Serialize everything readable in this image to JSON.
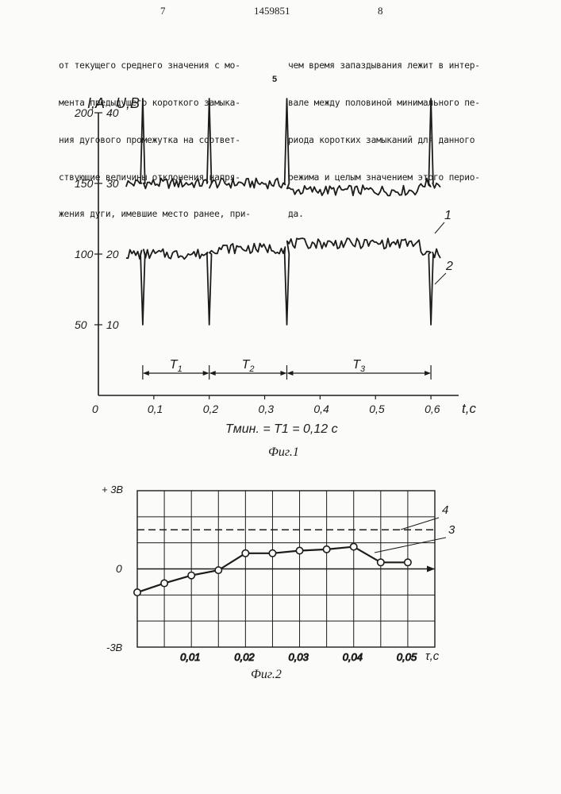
{
  "header": {
    "page_left": "7",
    "patent_number": "1459851",
    "page_right": "8",
    "line_marker": "5"
  },
  "text_left": [
    "от текущего среднего значения с мо-",
    "мента предыдущего короткого замыка-",
    "ния дугового промежутка на соответ-",
    "ствующие величины отклонения напря-",
    "жения дуги, имевшие место ранее, при-"
  ],
  "text_right": [
    "чем время запаздывания лежит в интер-",
    "вале между половиной минимального пе-",
    "риода коротких замыканий для данного",
    "режима и целым значением этого перио-",
    "да."
  ],
  "fig1": {
    "caption": "Фиг.1",
    "axis_label_left": "I,A",
    "axis_label_right": "U,B",
    "x_label": "t,c",
    "formula": "Tмин. = T1 = 0,12 c",
    "period_labels": [
      "T1",
      "T2",
      "T3"
    ],
    "curve_labels": [
      "1",
      "2"
    ]
  },
  "fig2": {
    "caption": "Фиг.2",
    "y_top_label": "+ 3В",
    "y_zero_label": "0",
    "y_bottom_label": "-3В",
    "x_label": "τ,c",
    "curve_labels": [
      "4",
      "3"
    ]
  },
  "chart_data": [
    {
      "type": "line",
      "x_ticks": [
        "0",
        "0,1",
        "0,2",
        "0,3",
        "0,4",
        "0,5",
        "0,6"
      ],
      "y_left_ticks": [
        "200",
        "150",
        "100",
        "50"
      ],
      "y_right_ticks": [
        "40",
        "30",
        "20",
        "10"
      ],
      "xlim": [
        0,
        0.65
      ],
      "ylim": [
        0,
        200
      ],
      "short_circuit_times": [
        0.08,
        0.2,
        0.34,
        0.6
      ],
      "periods": [
        {
          "name": "T1",
          "start": 0.08,
          "end": 0.2
        },
        {
          "name": "T2",
          "start": 0.2,
          "end": 0.34
        },
        {
          "name": "T3",
          "start": 0.34,
          "end": 0.6
        }
      ],
      "series": [
        {
          "name": "1",
          "base": 30,
          "peaks": 42
        },
        {
          "name": "2",
          "base": 20,
          "dips": 10
        }
      ]
    },
    {
      "type": "line",
      "x_ticks": [
        "0,01",
        "0,02",
        "0,03",
        "0,04",
        "0,05"
      ],
      "xlim": [
        0,
        0.055
      ],
      "ylim": [
        -3,
        3
      ],
      "series": [
        {
          "name": "3",
          "x": [
            0,
            0.005,
            0.01,
            0.015,
            0.02,
            0.025,
            0.03,
            0.035,
            0.04,
            0.045,
            0.05
          ],
          "y": [
            -0.9,
            -0.55,
            -0.25,
            -0.05,
            0.6,
            0.6,
            0.7,
            0.75,
            0.85,
            0.25,
            0.25
          ]
        },
        {
          "name": "4",
          "y_constant": 1.5
        }
      ]
    }
  ]
}
